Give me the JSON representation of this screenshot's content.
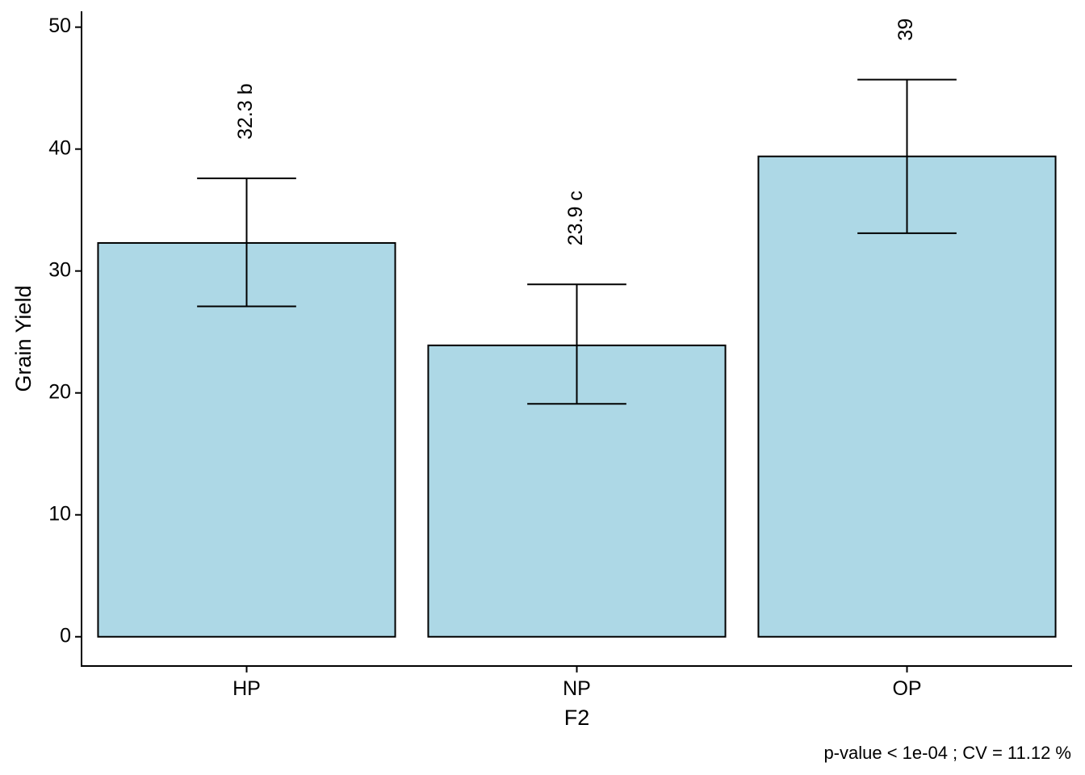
{
  "chart_data": {
    "type": "bar",
    "xlabel": "F2",
    "ylabel": "Grain Yield",
    "categories": [
      "HP",
      "NP",
      "OP"
    ],
    "values": [
      32.3,
      23.9,
      39.4
    ],
    "error_low": [
      27.1,
      19.1,
      33.1
    ],
    "error_high": [
      37.6,
      28.9,
      45.7
    ],
    "bar_labels": [
      "32.3 b",
      "23.9 c",
      "39"
    ],
    "ylim": [
      -2.4,
      51.3
    ],
    "yticks": [
      0,
      10,
      20,
      30,
      40,
      50
    ],
    "grid": false,
    "legend": "none",
    "caption": "p-value  < 1e-04 ; CV =  11.12 %",
    "colors": {
      "bar_fill": "#add8e6",
      "bar_stroke": "#000000",
      "axis": "#000000"
    }
  }
}
